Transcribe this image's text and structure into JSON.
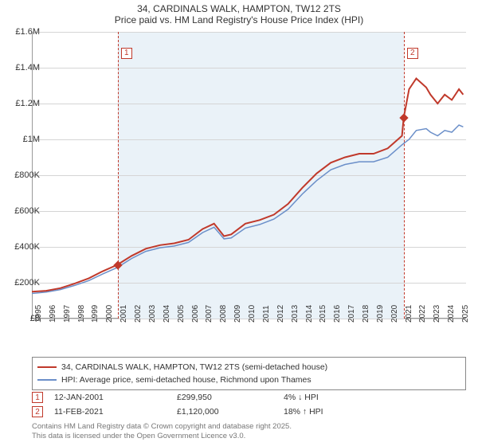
{
  "title": "34, CARDINALS WALK, HAMPTON, TW12 2TS",
  "subtitle": "Price paid vs. HM Land Registry's House Price Index (HPI)",
  "chart": {
    "type": "line",
    "background_color": "#ffffff",
    "shade_color": "#eaf2f8",
    "grid_color": "#d5d5d5",
    "axis_color": "#999999",
    "x_start": 1995,
    "x_end": 2025.5,
    "x_ticks": [
      1995,
      1996,
      1997,
      1998,
      1999,
      2000,
      2001,
      2002,
      2003,
      2004,
      2005,
      2006,
      2007,
      2008,
      2009,
      2010,
      2011,
      2012,
      2013,
      2014,
      2015,
      2016,
      2017,
      2018,
      2019,
      2020,
      2021,
      2022,
      2023,
      2024,
      2025
    ],
    "y_min": 0,
    "y_max": 1600000,
    "y_ticks": [
      0,
      200000,
      400000,
      600000,
      800000,
      1000000,
      1200000,
      1400000,
      1600000
    ],
    "y_tick_labels": [
      "£0",
      "£200K",
      "£400K",
      "£600K",
      "£800K",
      "£1M",
      "£1.2M",
      "£1.4M",
      "£1.6M"
    ],
    "shade_start": 2001.03,
    "shade_end": 2021.12,
    "markers": [
      {
        "num": "1",
        "year": 2001.03,
        "box_offset_y": 20
      },
      {
        "num": "2",
        "year": 2021.12,
        "box_offset_y": 20
      }
    ],
    "sale_points": [
      {
        "year": 2001.03,
        "price": 299950
      },
      {
        "year": 2021.12,
        "price": 1120000
      }
    ],
    "series": [
      {
        "name": "34, CARDINALS WALK, HAMPTON, TW12 2TS (semi-detached house)",
        "color": "#c0392b",
        "width": 2,
        "points": [
          [
            1995,
            150000
          ],
          [
            1996,
            155000
          ],
          [
            1997,
            170000
          ],
          [
            1998,
            195000
          ],
          [
            1999,
            225000
          ],
          [
            2000,
            265000
          ],
          [
            2001,
            300000
          ],
          [
            2002,
            350000
          ],
          [
            2003,
            390000
          ],
          [
            2004,
            410000
          ],
          [
            2005,
            420000
          ],
          [
            2006,
            440000
          ],
          [
            2007,
            500000
          ],
          [
            2007.8,
            530000
          ],
          [
            2008.5,
            460000
          ],
          [
            2009,
            470000
          ],
          [
            2010,
            530000
          ],
          [
            2011,
            550000
          ],
          [
            2012,
            580000
          ],
          [
            2013,
            640000
          ],
          [
            2014,
            730000
          ],
          [
            2015,
            810000
          ],
          [
            2016,
            870000
          ],
          [
            2017,
            900000
          ],
          [
            2018,
            920000
          ],
          [
            2019,
            920000
          ],
          [
            2020,
            950000
          ],
          [
            2021,
            1020000
          ],
          [
            2021.12,
            1120000
          ],
          [
            2021.5,
            1280000
          ],
          [
            2022,
            1340000
          ],
          [
            2022.7,
            1290000
          ],
          [
            2023,
            1250000
          ],
          [
            2023.5,
            1200000
          ],
          [
            2024,
            1250000
          ],
          [
            2024.5,
            1220000
          ],
          [
            2025,
            1280000
          ],
          [
            2025.3,
            1250000
          ]
        ]
      },
      {
        "name": "HPI: Average price, semi-detached house, Richmond upon Thames",
        "color": "#6b8fc9",
        "width": 1.5,
        "points": [
          [
            1995,
            140000
          ],
          [
            1996,
            148000
          ],
          [
            1997,
            162000
          ],
          [
            1998,
            185000
          ],
          [
            1999,
            212000
          ],
          [
            2000,
            250000
          ],
          [
            2001,
            285000
          ],
          [
            2002,
            335000
          ],
          [
            2003,
            375000
          ],
          [
            2004,
            395000
          ],
          [
            2005,
            405000
          ],
          [
            2006,
            425000
          ],
          [
            2007,
            480000
          ],
          [
            2007.8,
            510000
          ],
          [
            2008.5,
            445000
          ],
          [
            2009,
            450000
          ],
          [
            2010,
            505000
          ],
          [
            2011,
            525000
          ],
          [
            2012,
            555000
          ],
          [
            2013,
            610000
          ],
          [
            2014,
            695000
          ],
          [
            2015,
            770000
          ],
          [
            2016,
            830000
          ],
          [
            2017,
            860000
          ],
          [
            2018,
            875000
          ],
          [
            2019,
            875000
          ],
          [
            2020,
            900000
          ],
          [
            2021,
            970000
          ],
          [
            2021.5,
            1000000
          ],
          [
            2022,
            1050000
          ],
          [
            2022.7,
            1060000
          ],
          [
            2023,
            1040000
          ],
          [
            2023.5,
            1020000
          ],
          [
            2024,
            1050000
          ],
          [
            2024.5,
            1040000
          ],
          [
            2025,
            1080000
          ],
          [
            2025.3,
            1070000
          ]
        ]
      }
    ]
  },
  "legend": {
    "items": [
      {
        "color": "#c0392b",
        "width": 2,
        "label": "34, CARDINALS WALK, HAMPTON, TW12 2TS (semi-detached house)"
      },
      {
        "color": "#6b8fc9",
        "width": 1.5,
        "label": "HPI: Average price, semi-detached house, Richmond upon Thames"
      }
    ]
  },
  "table": {
    "rows": [
      {
        "num": "1",
        "date": "12-JAN-2001",
        "price": "£299,950",
        "pct": "4% ↓ HPI"
      },
      {
        "num": "2",
        "date": "11-FEB-2021",
        "price": "£1,120,000",
        "pct": "18% ↑ HPI"
      }
    ]
  },
  "footer": {
    "line1": "Contains HM Land Registry data © Crown copyright and database right 2025.",
    "line2": "This data is licensed under the Open Government Licence v3.0."
  }
}
